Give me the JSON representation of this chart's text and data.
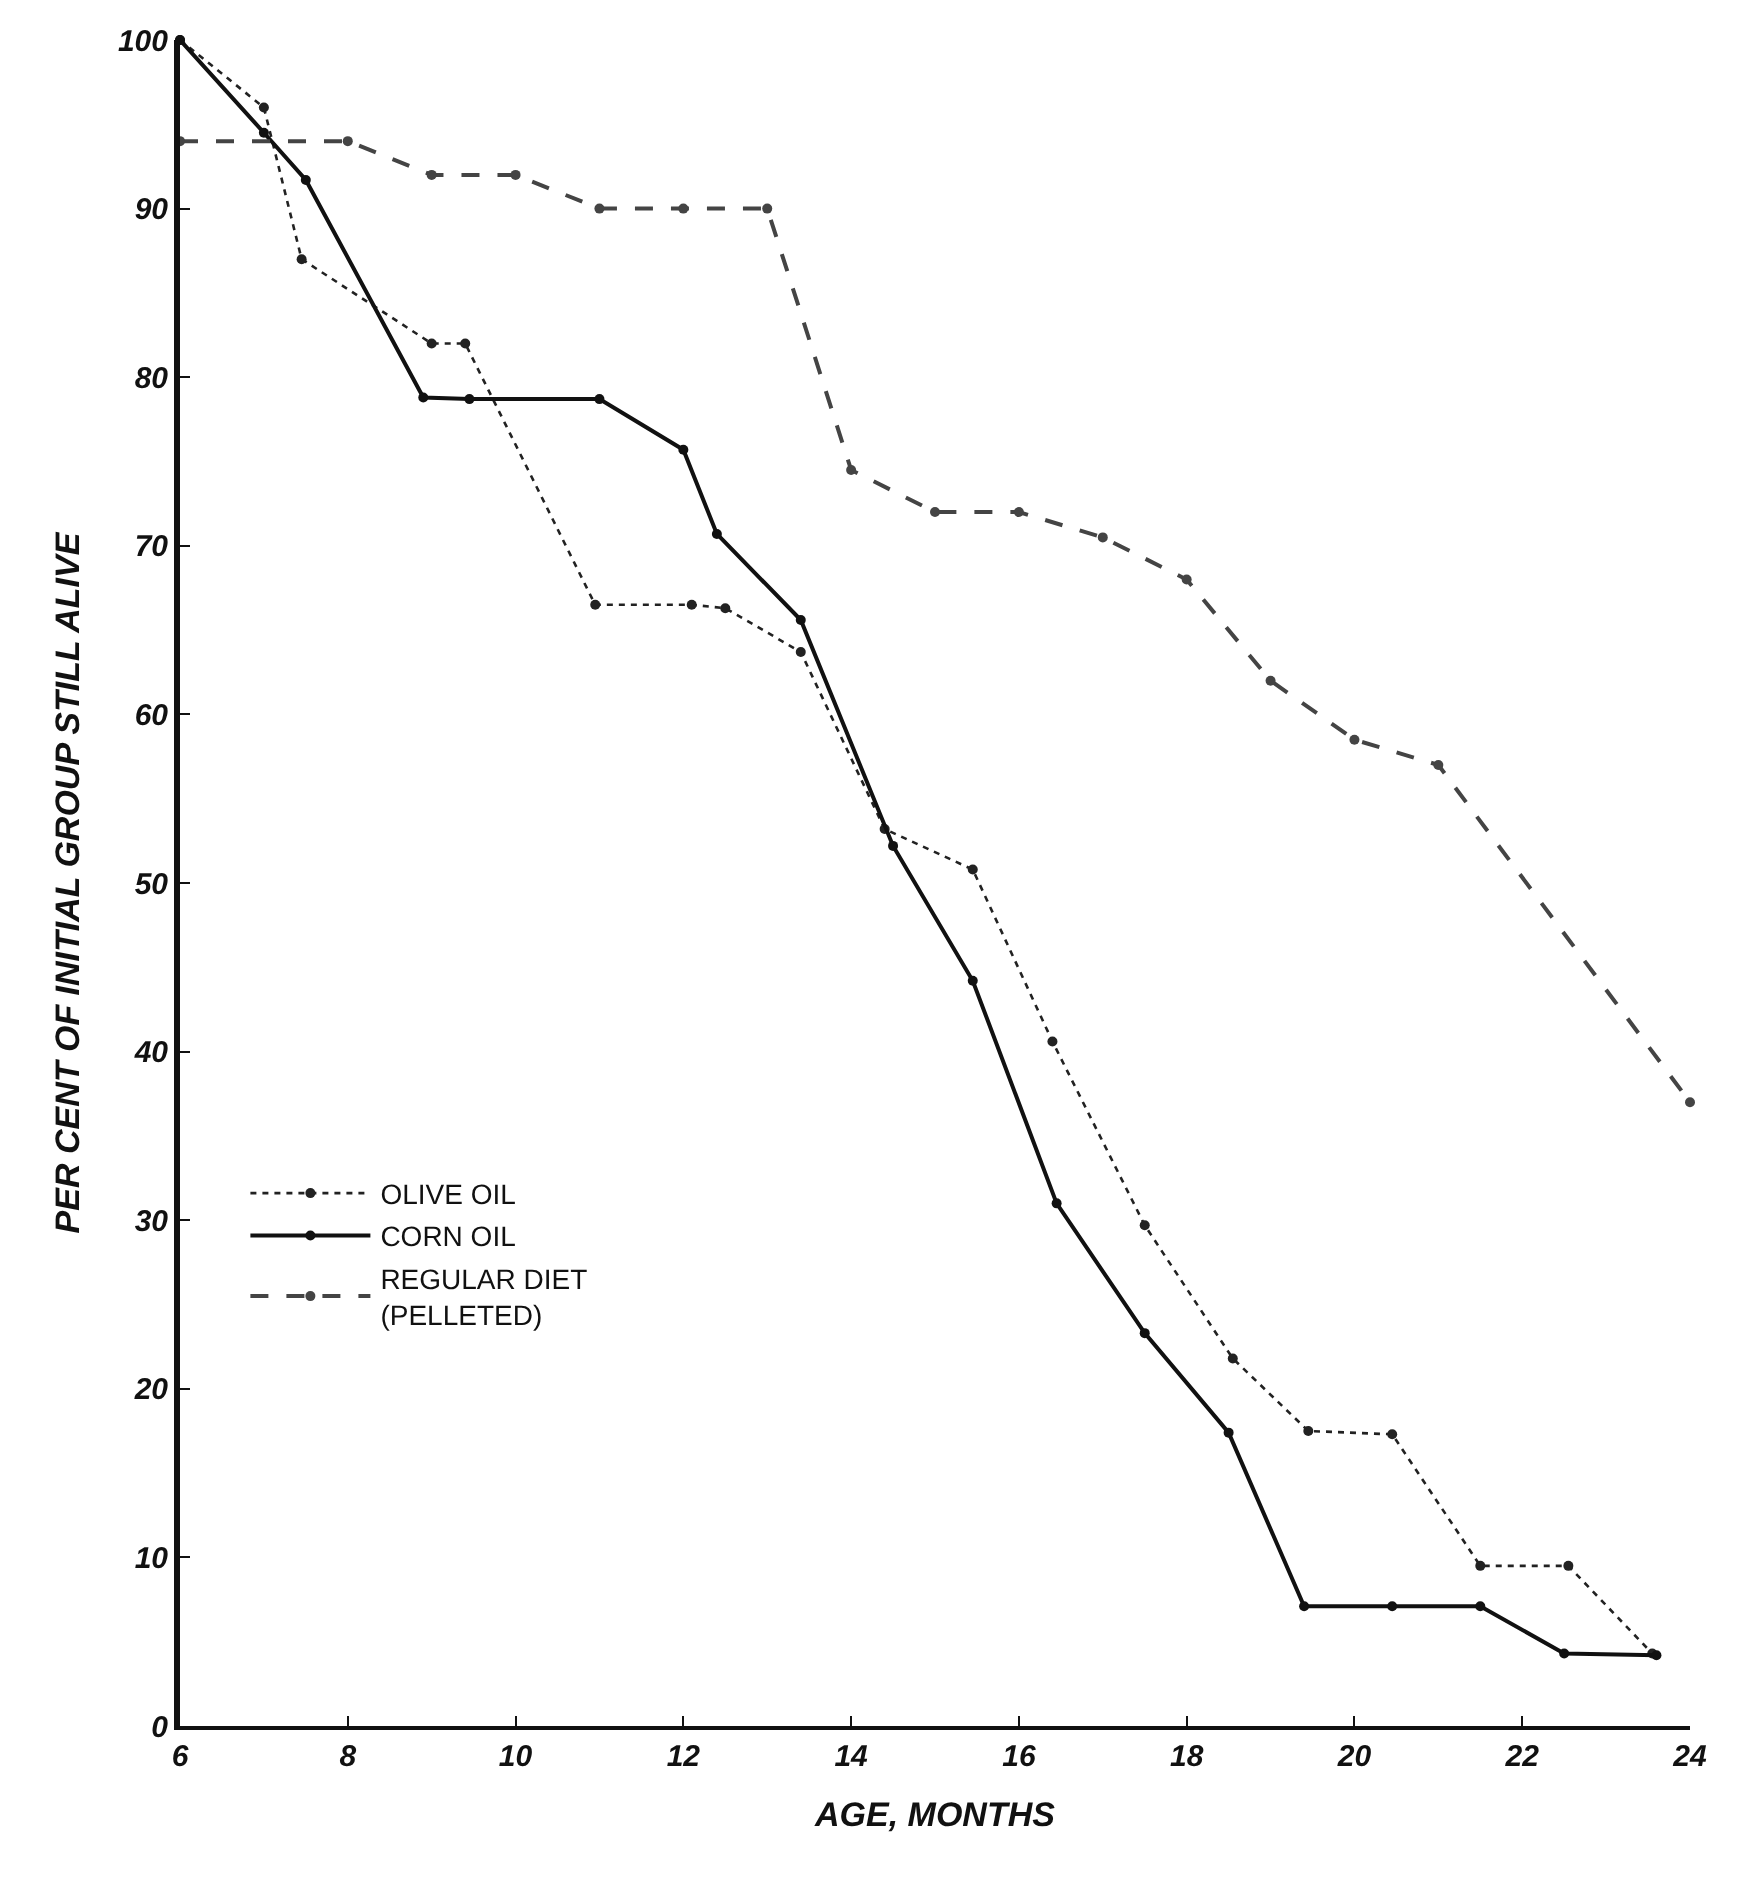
{
  "chart_data": {
    "type": "line",
    "xlabel": "AGE, MONTHS",
    "ylabel": "PER CENT OF INITIAL GROUP STILL ALIVE",
    "xlim": [
      6,
      24
    ],
    "xticks": [
      6,
      8,
      10,
      12,
      14,
      16,
      18,
      20,
      22,
      24
    ],
    "ylim": [
      0,
      100
    ],
    "yticks": [
      0,
      10,
      20,
      30,
      40,
      50,
      60,
      70,
      80,
      90,
      100
    ],
    "legend": "left",
    "marker": "circle",
    "series": [
      {
        "name": "OLIVE OIL",
        "color": "#222222",
        "line_style": "dotted",
        "x": [
          6,
          7,
          7.45,
          9,
          9.4,
          10.95,
          12.1,
          12.5,
          13.4,
          14.4,
          15.45,
          16.4,
          17.5,
          18.55,
          19.45,
          20.45,
          21.5,
          22.55,
          23.55
        ],
        "values": [
          100,
          96,
          87,
          82,
          82,
          66.5,
          66.5,
          66.3,
          63.7,
          53.2,
          50.8,
          40.6,
          29.7,
          21.8,
          17.5,
          17.3,
          9.5,
          9.5,
          4.3
        ]
      },
      {
        "name": "CORN OIL",
        "color": "#111111",
        "line_style": "solid",
        "x": [
          6,
          7,
          7.5,
          8.9,
          9.45,
          11,
          12,
          12.4,
          13.4,
          14.5,
          15.45,
          16.45,
          17.5,
          18.5,
          19.4,
          20.45,
          21.5,
          22.5,
          23.6
        ],
        "values": [
          100,
          94.5,
          91.7,
          78.8,
          78.7,
          78.7,
          75.7,
          70.7,
          65.6,
          52.2,
          44.2,
          31,
          23.3,
          17.4,
          7.1,
          7.1,
          7.1,
          4.3,
          4.2
        ]
      },
      {
        "name": "REGULAR DIET\n(PELLETED)",
        "color": "#444444",
        "line_style": "dashed",
        "x": [
          6,
          8,
          9,
          10,
          11,
          12,
          13,
          14,
          15,
          16,
          17,
          18,
          19,
          20,
          21,
          24
        ],
        "values": [
          94,
          94,
          92,
          92,
          90,
          90,
          90,
          74.5,
          72,
          72,
          70.5,
          68,
          62,
          58.5,
          57,
          37
        ]
      }
    ]
  }
}
